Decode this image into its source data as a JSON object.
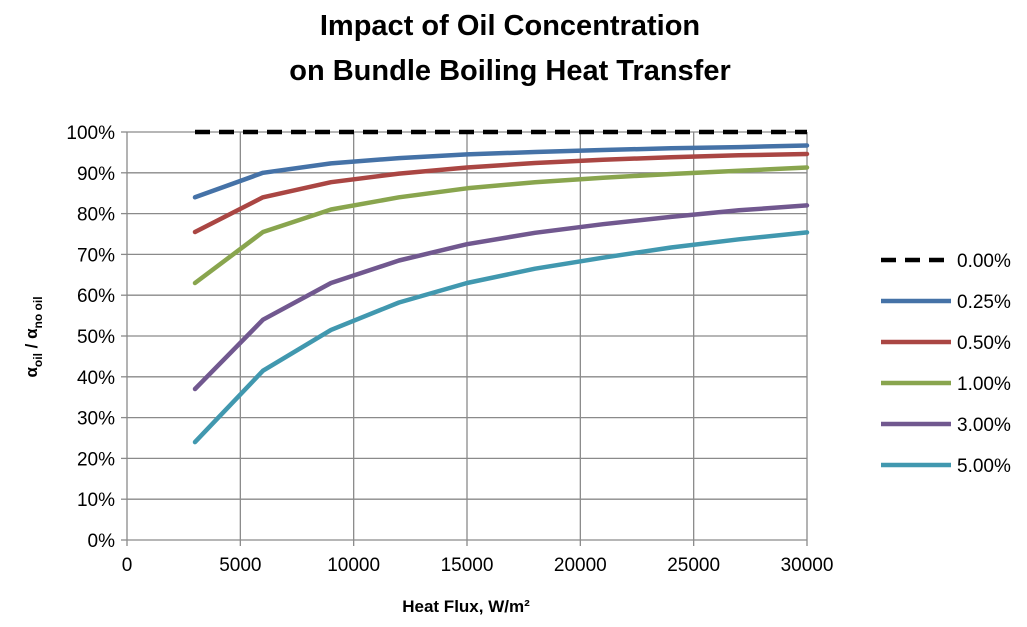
{
  "chart_data": {
    "type": "line",
    "title_lines": [
      "Impact of Oil Concentration",
      "on Bundle Boiling Heat Transfer"
    ],
    "xlabel": "Heat Flux, W/m²",
    "ylabel": {
      "part1_main": "α",
      "part1_sub": "oil",
      "separator": " / ",
      "part2_main": "α",
      "part2_sub": "no oil"
    },
    "xlim": [
      0,
      30000
    ],
    "ylim": [
      0,
      100
    ],
    "x_ticks": [
      0,
      5000,
      10000,
      15000,
      20000,
      25000,
      30000
    ],
    "x_tick_labels": [
      "0",
      "5000",
      "10000",
      "15000",
      "20000",
      "25000",
      "30000"
    ],
    "y_ticks": [
      0,
      10,
      20,
      30,
      40,
      50,
      60,
      70,
      80,
      90,
      100
    ],
    "y_tick_labels": [
      "0%",
      "10%",
      "20%",
      "30%",
      "40%",
      "50%",
      "60%",
      "70%",
      "80%",
      "90%",
      "100%"
    ],
    "grid": true,
    "legend_position": "right",
    "x": [
      3000,
      6000,
      9000,
      12000,
      15000,
      18000,
      21000,
      24000,
      27000,
      30000
    ],
    "series": [
      {
        "name": "0.00%",
        "color": "#000000",
        "dashed": true,
        "values": [
          100,
          100,
          100,
          100,
          100,
          100,
          100,
          100,
          100,
          100
        ]
      },
      {
        "name": "0.25%",
        "color": "#4572a7",
        "dashed": false,
        "values": [
          84,
          90,
          92.3,
          93.6,
          94.5,
          95.1,
          95.6,
          96,
          96.3,
          96.7
        ]
      },
      {
        "name": "0.50%",
        "color": "#aa4643",
        "dashed": false,
        "values": [
          75.5,
          84,
          87.7,
          89.8,
          91.3,
          92.4,
          93.2,
          93.8,
          94.3,
          94.6
        ]
      },
      {
        "name": "1.00%",
        "color": "#89a54e",
        "dashed": false,
        "values": [
          63,
          75.5,
          81,
          84,
          86.2,
          87.7,
          88.8,
          89.7,
          90.5,
          91.3
        ]
      },
      {
        "name": "3.00%",
        "color": "#71588f",
        "dashed": false,
        "values": [
          37,
          54,
          63,
          68.5,
          72.5,
          75.3,
          77.4,
          79.2,
          80.8,
          82
        ]
      },
      {
        "name": "5.00%",
        "color": "#4198af",
        "dashed": false,
        "values": [
          24,
          41.5,
          51.5,
          58.2,
          63,
          66.5,
          69.2,
          71.7,
          73.7,
          75.4
        ]
      }
    ]
  }
}
